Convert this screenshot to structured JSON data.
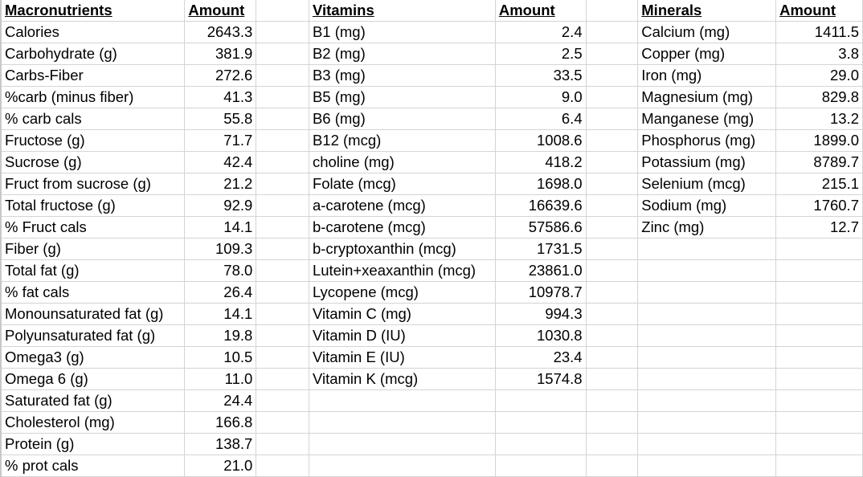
{
  "headers": {
    "macro": "Macronutrients",
    "macro_amount": "Amount",
    "vit": "Vitamins",
    "vit_amount": "Amount",
    "min": "Minerals",
    "min_amount": "Amount"
  },
  "macronutrients": [
    {
      "name": "Calories",
      "amount": "2643.3"
    },
    {
      "name": "Carbohydrate (g)",
      "amount": "381.9"
    },
    {
      "name": "Carbs-Fiber",
      "amount": "272.6"
    },
    {
      "name": "%carb (minus fiber)",
      "amount": "41.3"
    },
    {
      "name": "% carb cals",
      "amount": "55.8"
    },
    {
      "name": "Fructose (g)",
      "amount": "71.7"
    },
    {
      "name": "Sucrose (g)",
      "amount": "42.4"
    },
    {
      "name": "Fruct from sucrose (g)",
      "amount": "21.2"
    },
    {
      "name": "Total fructose (g)",
      "amount": "92.9"
    },
    {
      "name": "% Fruct cals",
      "amount": "14.1"
    },
    {
      "name": "Fiber (g)",
      "amount": "109.3"
    },
    {
      "name": "Total fat (g)",
      "amount": "78.0"
    },
    {
      "name": "% fat cals",
      "amount": "26.4"
    },
    {
      "name": "Monounsaturated fat (g)",
      "amount": "14.1"
    },
    {
      "name": "Polyunsaturated fat (g)",
      "amount": "19.8"
    },
    {
      "name": "Omega3 (g)",
      "amount": "10.5"
    },
    {
      "name": "Omega 6 (g)",
      "amount": "11.0"
    },
    {
      "name": "Saturated fat (g)",
      "amount": "24.4"
    },
    {
      "name": "Cholesterol (mg)",
      "amount": "166.8"
    },
    {
      "name": "Protein (g)",
      "amount": "138.7"
    },
    {
      "name": "% prot cals",
      "amount": "21.0"
    }
  ],
  "vitamins": [
    {
      "name": "B1 (mg)",
      "amount": "2.4"
    },
    {
      "name": "B2 (mg)",
      "amount": "2.5"
    },
    {
      "name": "B3 (mg)",
      "amount": "33.5"
    },
    {
      "name": "B5 (mg)",
      "amount": "9.0"
    },
    {
      "name": "B6 (mg)",
      "amount": "6.4"
    },
    {
      "name": "B12 (mcg)",
      "amount": "1008.6"
    },
    {
      "name": "choline (mg)",
      "amount": "418.2"
    },
    {
      "name": "Folate (mcg)",
      "amount": "1698.0"
    },
    {
      "name": "a-carotene (mcg)",
      "amount": "16639.6"
    },
    {
      "name": "b-carotene (mcg)",
      "amount": "57586.6"
    },
    {
      "name": "b-cryptoxanthin (mcg)",
      "amount": "1731.5"
    },
    {
      "name": "Lutein+xeaxanthin (mcg)",
      "amount": "23861.0"
    },
    {
      "name": "Lycopene (mcg)",
      "amount": "10978.7"
    },
    {
      "name": "Vitamin C (mg)",
      "amount": "994.3"
    },
    {
      "name": "Vitamin D (IU)",
      "amount": "1030.8"
    },
    {
      "name": "Vitamin E (IU)",
      "amount": "23.4"
    },
    {
      "name": "Vitamin K (mcg)",
      "amount": "1574.8"
    }
  ],
  "minerals": [
    {
      "name": "Calcium (mg)",
      "amount": "1411.5"
    },
    {
      "name": "Copper (mg)",
      "amount": "3.8"
    },
    {
      "name": "Iron (mg)",
      "amount": "29.0"
    },
    {
      "name": "Magnesium (mg)",
      "amount": "829.8"
    },
    {
      "name": "Manganese (mg)",
      "amount": "13.2"
    },
    {
      "name": "Phosphorus (mg)",
      "amount": "1899.0"
    },
    {
      "name": "Potassium (mg)",
      "amount": "8789.7"
    },
    {
      "name": "Selenium (mcg)",
      "amount": "215.1"
    },
    {
      "name": "Sodium (mg)",
      "amount": "1760.7"
    },
    {
      "name": "Zinc (mg)",
      "amount": "12.7"
    }
  ]
}
